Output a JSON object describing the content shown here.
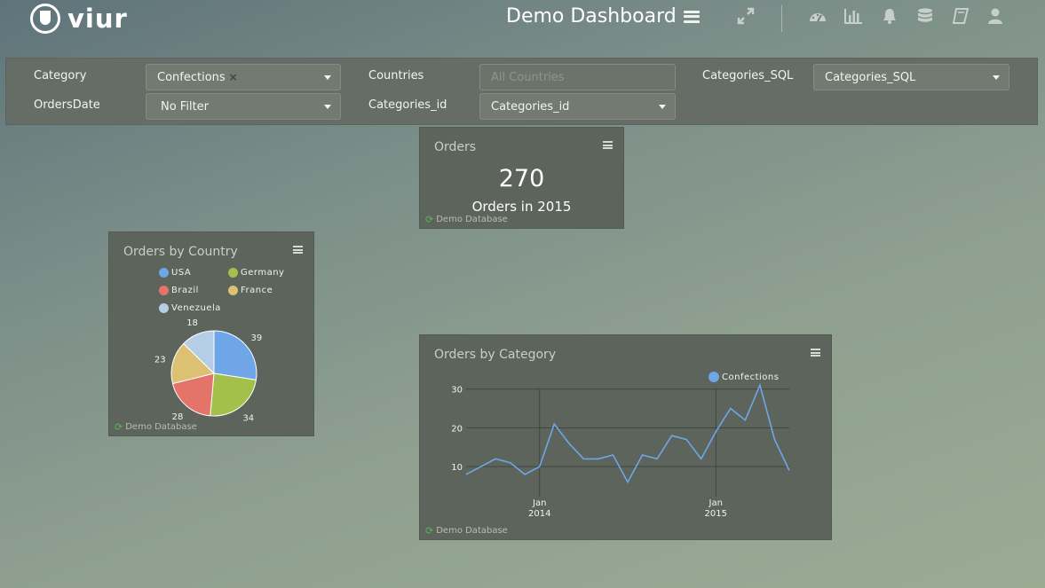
{
  "app": {
    "logo_text": "viur",
    "title": "Demo Dashboard"
  },
  "nav_icons": [
    "expand-icon",
    "dashboard-gauge-icon",
    "bar-chart-icon",
    "bell-icon",
    "database-icon",
    "book-icon",
    "user-icon"
  ],
  "filters": {
    "category": {
      "label": "Category",
      "value": "Confections"
    },
    "countries": {
      "label": "Countries",
      "placeholder": "All Countries"
    },
    "categories_sql": {
      "label": "Categories_SQL",
      "value": "Categories_SQL"
    },
    "orders_date": {
      "label": "OrdersDate",
      "value": "No Filter"
    },
    "categories_id": {
      "label": "Categories_id",
      "value": "Categories_id"
    }
  },
  "cards": {
    "orders": {
      "title": "Orders",
      "value": "270",
      "subtitle": "Orders in 2015",
      "source": "Demo Database"
    },
    "orders_by_country": {
      "title": "Orders by Country",
      "source": "Demo Database"
    },
    "orders_by_category": {
      "title": "Orders by Category",
      "source": "Demo Database"
    }
  },
  "colors": {
    "accent_green": "#58b65a",
    "card_bg": "#5d645c",
    "line": "#6ea6e8"
  },
  "chart_data": [
    {
      "type": "pie",
      "title": "Orders by Country",
      "legend_position": "top",
      "slices": [
        {
          "name": "USA",
          "value": 39,
          "color": "#6ea6e8"
        },
        {
          "name": "Germany",
          "value": 34,
          "color": "#a3c04a"
        },
        {
          "name": "Brazil",
          "value": 28,
          "color": "#e4746a"
        },
        {
          "name": "France",
          "value": 23,
          "color": "#dcc073"
        },
        {
          "name": "Venezuela",
          "value": 18,
          "color": "#b6cde6"
        }
      ]
    },
    {
      "type": "line",
      "title": "Orders by Category",
      "legend_position": "top-right",
      "grid": true,
      "ylim": [
        5,
        32
      ],
      "yticks": [
        10,
        20,
        30
      ],
      "xticks": [
        {
          "label1": "Jan",
          "label2": "2014",
          "month_index": 5
        },
        {
          "label1": "Jan",
          "label2": "2015",
          "month_index": 17
        }
      ],
      "series": [
        {
          "name": "Confections",
          "color": "#6ea6e8",
          "values": [
            8,
            10,
            12,
            11,
            8,
            10,
            21,
            16,
            12,
            12,
            13,
            6,
            13,
            12,
            18,
            17,
            12,
            19,
            25,
            22,
            31,
            17,
            9
          ]
        }
      ]
    }
  ]
}
